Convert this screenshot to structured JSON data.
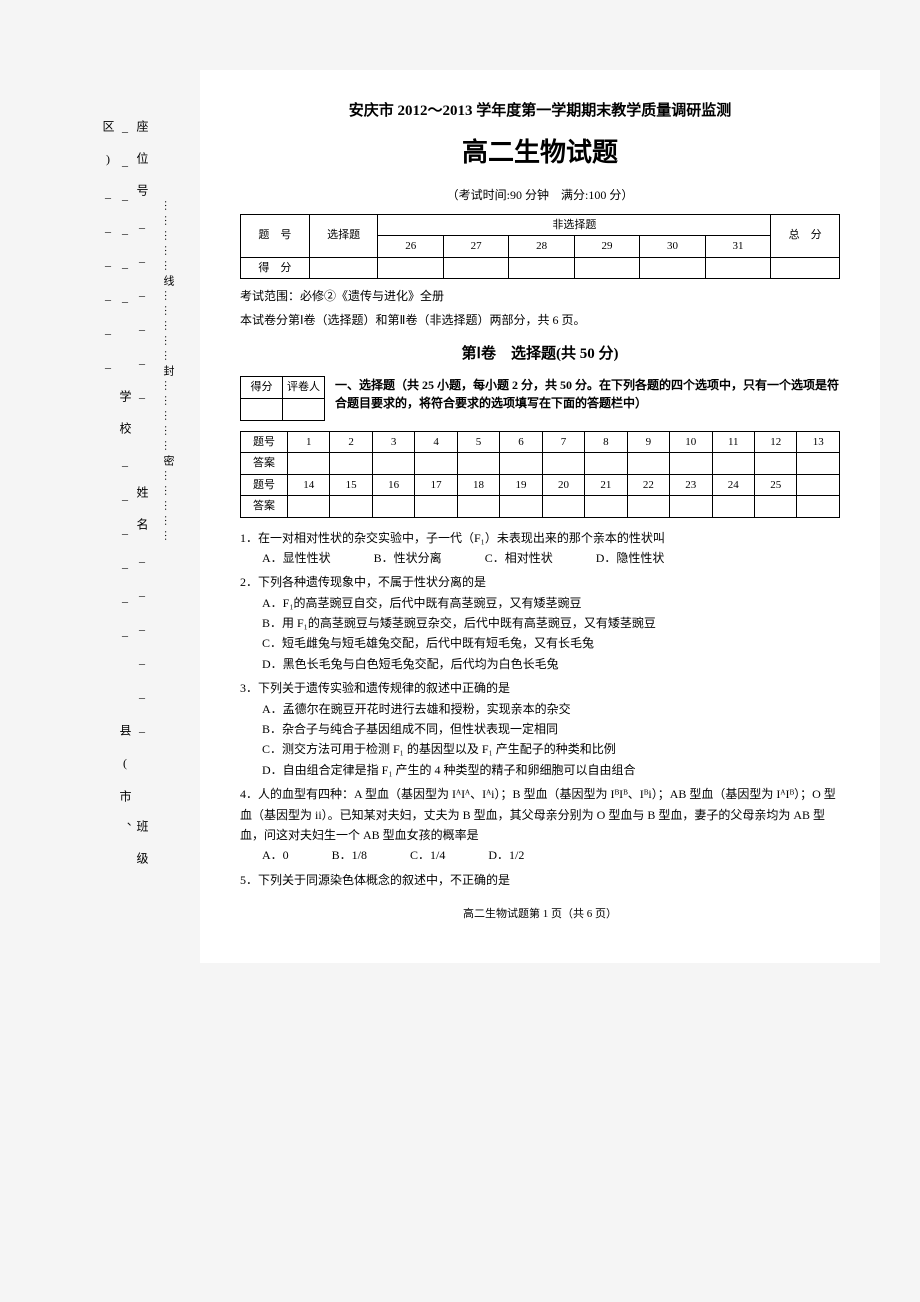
{
  "side": {
    "labels": [
      "座位号",
      "姓名",
      "班级",
      "学校",
      "县(市、区)"
    ],
    "line_text": "……………线……………封……………密……………"
  },
  "header": {
    "line": "安庆市 2012～2013 学年度第一学期期末教学质量调研监测",
    "title": "高二生物试题",
    "exam_info": "（考试时间:90 分钟　满分:100 分）"
  },
  "score_table1": {
    "row1": [
      "题　号",
      "选择题",
      "非选择题",
      "总　分"
    ],
    "sub_cols": [
      "26",
      "27",
      "28",
      "29",
      "30",
      "31"
    ],
    "row2_label": "得　分"
  },
  "scope": {
    "line1": "考试范围：必修②《遗传与进化》全册",
    "line2": "本试卷分第Ⅰ卷（选择题）和第Ⅱ卷（非选择题）两部分，共 6 页。"
  },
  "section1": {
    "title": "第Ⅰ卷　选择题(共 50 分)"
  },
  "small_box": {
    "c1": "得分",
    "c2": "评卷人"
  },
  "instruction": "一、选择题（共 25 小题，每小题 2 分，共 50 分。在下列各题的四个选项中，只有一个选项是符合题目要求的，将符合要求的选项填写在下面的答题栏中）",
  "answer_table": {
    "label_qnum": "题号",
    "label_ans": "答案",
    "row1_nums": [
      "1",
      "2",
      "3",
      "4",
      "5",
      "6",
      "7",
      "8",
      "9",
      "10",
      "11",
      "12",
      "13"
    ],
    "row2_nums": [
      "14",
      "15",
      "16",
      "17",
      "18",
      "19",
      "20",
      "21",
      "22",
      "23",
      "24",
      "25",
      ""
    ]
  },
  "questions": {
    "q1": {
      "stem": "1．在一对相对性状的杂交实验中，子一代（F₁）未表现出来的那个亲本的性状叫",
      "opts": [
        "A．显性性状",
        "B．性状分离",
        "C．相对性状",
        "D．隐性性状"
      ]
    },
    "q2": {
      "stem": "2．下列各种遗传现象中，不属于性状分离的是",
      "a": "A．F₁的高茎豌豆自交，后代中既有高茎豌豆，又有矮茎豌豆",
      "b": "B．用 F₁的高茎豌豆与矮茎豌豆杂交，后代中既有高茎豌豆，又有矮茎豌豆",
      "c": "C．短毛雌兔与短毛雄兔交配，后代中既有短毛兔，又有长毛兔",
      "d": "D．黑色长毛兔与白色短毛兔交配，后代均为白色长毛兔"
    },
    "q3": {
      "stem": "3．下列关于遗传实验和遗传规律的叙述中正确的是",
      "a": "A．孟德尔在豌豆开花时进行去雄和授粉，实现亲本的杂交",
      "b": "B．杂合子与纯合子基因组成不同，但性状表现一定相同",
      "c": "C．测交方法可用于检测 F₁ 的基因型以及 F₁ 产生配子的种类和比例",
      "d": "D．自由组合定律是指 F₁ 产生的 4 种类型的精子和卵细胞可以自由组合"
    },
    "q4": {
      "stem": "4．人的血型有四种：A 型血（基因型为 IᴬIᴬ、Iᴬi）；B 型血（基因型为 IᴮIᴮ、Iᴮi）；AB 型血（基因型为 IᴬIᴮ）；O 型血（基因型为 ii）。已知某对夫妇，丈夫为 B 型血，其父母亲分别为 O 型血与 B 型血，妻子的父母亲均为 AB 型血，问这对夫妇生一个 AB 型血女孩的概率是",
      "opts": [
        "A．0",
        "B．1/8",
        "C．1/4",
        "D．1/2"
      ]
    },
    "q5": {
      "stem": "5．下列关于同源染色体概念的叙述中，不正确的是"
    }
  },
  "footer": "高二生物试题第 1 页（共 6 页）",
  "colors": {
    "page_bg": "#ffffff",
    "body_bg": "#f5f5f5",
    "text": "#000000",
    "border": "#000000"
  }
}
